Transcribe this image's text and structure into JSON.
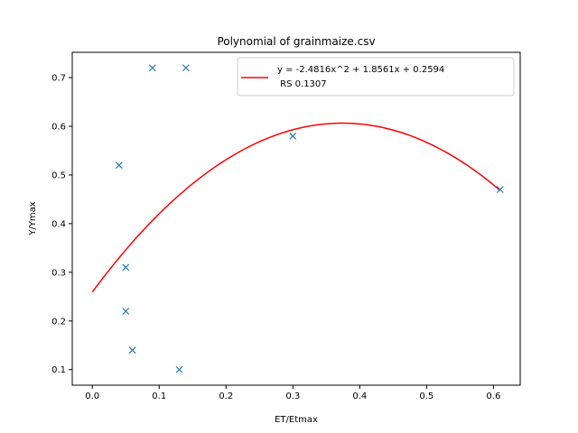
{
  "chart_data": {
    "type": "scatter",
    "title": "Polynomial of grainmaize.csv",
    "xlabel": "ET/Etmax",
    "ylabel": "Y/Ymax",
    "xlim": [
      -0.03,
      0.64
    ],
    "ylim": [
      0.068,
      0.752
    ],
    "xticks": [
      "0.0",
      "0.1",
      "0.2",
      "0.3",
      "0.4",
      "0.5",
      "0.6"
    ],
    "yticks": [
      "0.1",
      "0.2",
      "0.3",
      "0.4",
      "0.5",
      "0.6",
      "0.7"
    ],
    "grid": false,
    "legend_position": "top-right",
    "points": {
      "marker": "x",
      "color": "#1f77b4",
      "x": [
        0.04,
        0.05,
        0.05,
        0.06,
        0.09,
        0.13,
        0.14,
        0.3,
        0.61
      ],
      "y": [
        0.52,
        0.31,
        0.22,
        0.14,
        0.72,
        0.1,
        0.72,
        0.58,
        0.47
      ]
    },
    "fit": {
      "color": "#ff0000",
      "coefficients": [
        -2.4816,
        1.8561,
        0.2594
      ],
      "x_range": [
        0.0,
        0.61
      ],
      "legend_line1": "y = -2.4816x^2 + 1.8561x + 0.2594",
      "legend_line2": " RS 0.1307"
    }
  }
}
